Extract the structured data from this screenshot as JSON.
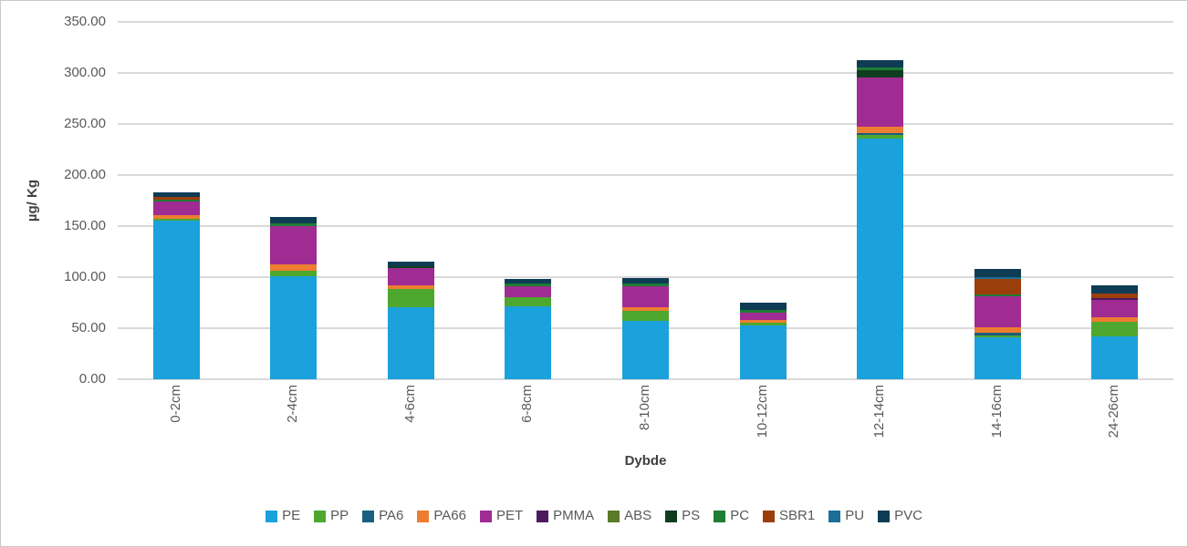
{
  "figure": {
    "background": "#FFFFFF",
    "border_color": "#C9C9C9"
  },
  "axes": {
    "y_title": "µg/ Kg",
    "x_title": "Dybde",
    "tick_label_color": "#595959",
    "title_color": "#404040",
    "gridline_color": "#D9D9D9"
  },
  "chart_data": {
    "type": "bar",
    "stacked": true,
    "title": "",
    "xlabel": "Dybde",
    "ylabel": "µg/ Kg",
    "ylim": [
      0,
      350
    ],
    "ytick_step": 50,
    "ytick_labels": [
      "350.00",
      "300.00",
      "250.00",
      "200.00",
      "150.00",
      "100.00",
      "50.00",
      "0.00"
    ],
    "grid": "horizontal",
    "legend_position": "bottom",
    "categories": [
      "0-2cm",
      "2-4cm",
      "4-6cm",
      "6-8cm",
      "8-10cm",
      "10-12cm",
      "12-14cm",
      "14-16cm",
      "24-26cm"
    ],
    "series": [
      {
        "name": "PE",
        "color": "#1BA1DB",
        "values": [
          155,
          101,
          70.5,
          71.5,
          57,
          52.5,
          236,
          41,
          42
        ]
      },
      {
        "name": "PP",
        "color": "#4EA72E",
        "values": [
          2,
          5.5,
          18,
          9,
          10,
          2.5,
          3.5,
          2,
          14.5
        ]
      },
      {
        "name": "PA6",
        "color": "#1B5E7F",
        "values": [
          0,
          0,
          0,
          0,
          0,
          0,
          2,
          2.5,
          0
        ]
      },
      {
        "name": "PA66",
        "color": "#ED7D31",
        "values": [
          4,
          6,
          3.5,
          0,
          3.5,
          3.5,
          5.5,
          5.5,
          4.5
        ]
      },
      {
        "name": "PET",
        "color": "#A02B93",
        "values": [
          13,
          37.5,
          17,
          10.5,
          20.5,
          7,
          49,
          30.5,
          17
        ]
      },
      {
        "name": "PMMA",
        "color": "#4C1A5E",
        "values": [
          0,
          0,
          0,
          0,
          0,
          0,
          0,
          0,
          1.5
        ]
      },
      {
        "name": "ABS",
        "color": "#5A7A28",
        "values": [
          0,
          0,
          0,
          0,
          0,
          0,
          0,
          0,
          0
        ]
      },
      {
        "name": "PS",
        "color": "#0F3D20",
        "values": [
          0,
          0,
          1.5,
          0,
          0,
          0,
          7,
          0,
          0
        ]
      },
      {
        "name": "PC",
        "color": "#1E7C34",
        "values": [
          2,
          2.5,
          0,
          2.5,
          2.5,
          2.5,
          2,
          2,
          0
        ]
      },
      {
        "name": "SBR1",
        "color": "#9C3E0C",
        "values": [
          3,
          0,
          0,
          0,
          0,
          0,
          0,
          14.5,
          4.5
        ]
      },
      {
        "name": "PU",
        "color": "#1B6E96",
        "values": [
          0,
          0,
          0,
          0,
          0,
          0,
          0,
          2,
          0
        ]
      },
      {
        "name": "PVC",
        "color": "#0E3C54",
        "values": [
          4.5,
          6.5,
          4.5,
          4.5,
          5.5,
          7,
          8,
          8,
          8
        ]
      }
    ]
  }
}
